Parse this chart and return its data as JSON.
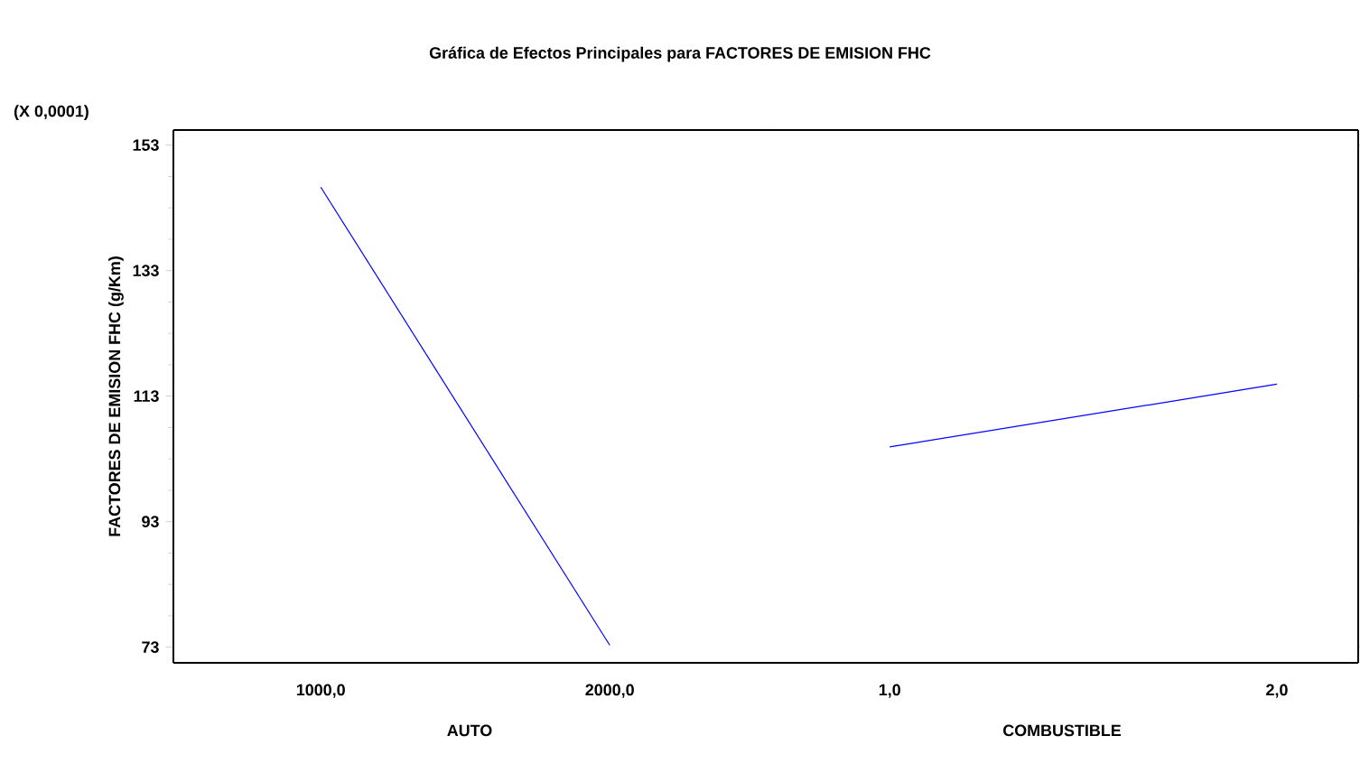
{
  "chart_data": [
    {
      "type": "line",
      "title": "Gráfica de Efectos Principales para FACTORES DE EMISION FHC",
      "xlabel": "AUTO",
      "ylabel": "FACTORES DE EMISION FHC (g/Km)",
      "annotations": [
        "(X 0,0001)"
      ],
      "x": [
        1000,
        2000
      ],
      "series": [
        {
          "color": "#0000ff",
          "values": [
            146.3,
            73.3
          ]
        }
      ],
      "xlim": [
        490,
        2540
      ],
      "xticks": [
        {
          "value": 1000,
          "label": "1000,0"
        },
        {
          "value": 2000,
          "label": "2000,0"
        }
      ],
      "ylim": [
        70.5,
        155.4
      ],
      "yticks": [
        73,
        93,
        113,
        133,
        153
      ],
      "grid": false,
      "marker": "none",
      "line_style": "solid"
    },
    {
      "type": "line",
      "xlabel": "COMBUSTIBLE",
      "x": [
        1,
        2
      ],
      "series": [
        {
          "color": "#0000ff",
          "values": [
            104.9,
            114.9
          ]
        }
      ],
      "xlim": [
        0.68,
        2.21
      ],
      "xticks": [
        {
          "value": 1,
          "label": "1,0"
        },
        {
          "value": 2,
          "label": "2,0"
        }
      ],
      "ylim": [
        70.5,
        155.4
      ],
      "yticks": [
        73,
        93,
        113,
        133,
        153
      ],
      "tick_labels": "x",
      "grid": false,
      "marker": "none",
      "line_style": "solid"
    }
  ]
}
